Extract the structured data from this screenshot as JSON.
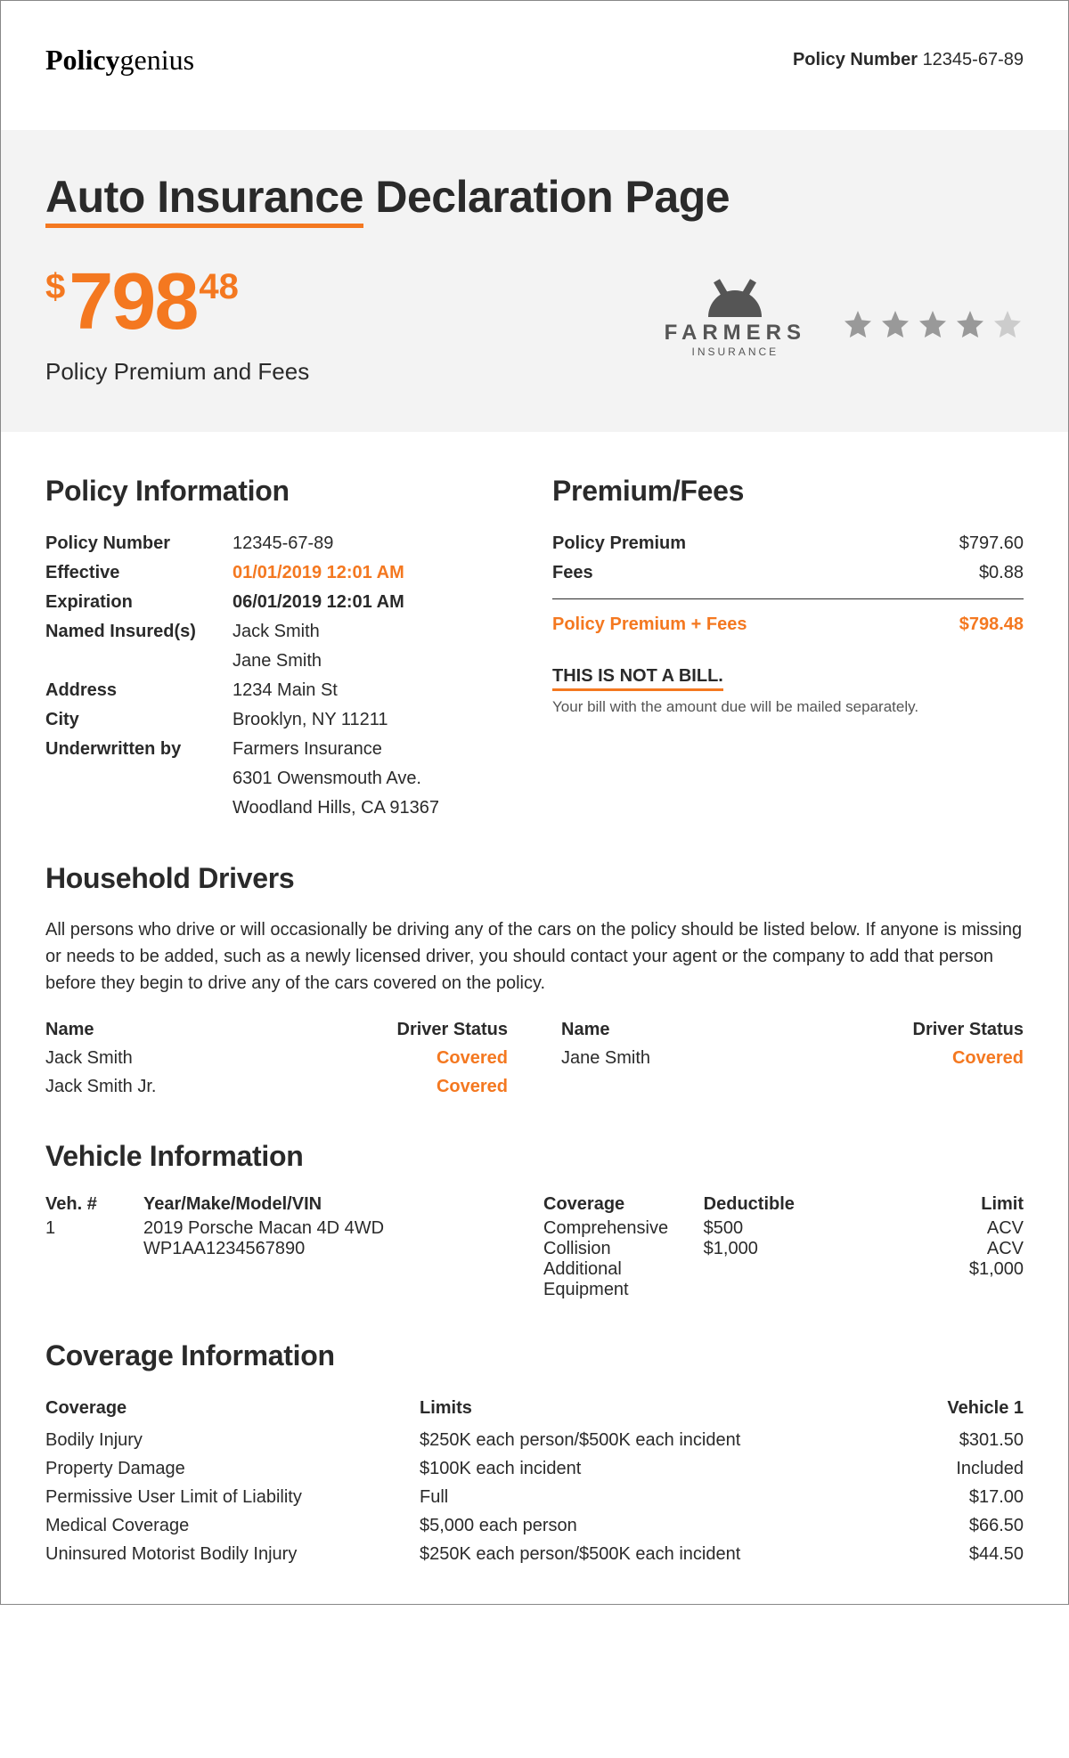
{
  "brand": {
    "bold": "Policy",
    "rest": "genius"
  },
  "header": {
    "label": "Policy Number",
    "value": "12345-67-89"
  },
  "hero": {
    "title_underlined": "Auto Insurance",
    "title_rest": " Declaration Page",
    "price_dollar": "$",
    "price_big": "798",
    "price_cents": "48",
    "caption": "Policy Premium and Fees",
    "insurer_name": "FARMERS",
    "insurer_sub": "INSURANCE",
    "rating_filled": 4,
    "rating_total": 5
  },
  "policy_info": {
    "heading": "Policy Information",
    "rows": [
      {
        "k": "Policy Number",
        "v": "12345-67-89"
      },
      {
        "k": "Effective",
        "v": "01/01/2019 12:01 AM",
        "orange": true,
        "bold": true
      },
      {
        "k": "Expiration",
        "v": "06/01/2019 12:01 AM",
        "bold": true
      },
      {
        "k": "Named Insured(s)",
        "v": "Jack Smith"
      },
      {
        "k": "",
        "v": "Jane Smith"
      },
      {
        "k": "Address",
        "v": "1234 Main St"
      },
      {
        "k": "City",
        "v": "Brooklyn, NY 11211"
      },
      {
        "k": "Underwritten by",
        "v": "Farmers Insurance"
      },
      {
        "k": "",
        "v": "6301 Owensmouth Ave."
      },
      {
        "k": "",
        "v": "Woodland Hills, CA 91367"
      }
    ]
  },
  "fees": {
    "heading": "Premium/Fees",
    "rows": [
      {
        "k": "Policy Premium",
        "v": "$797.60"
      },
      {
        "k": "Fees",
        "v": "$0.88"
      }
    ],
    "total": {
      "k": "Policy Premium + Fees",
      "v": "$798.48"
    },
    "not_bill": "THIS IS NOT A BILL.",
    "note": "Your bill with the amount due will be mailed separately."
  },
  "drivers": {
    "heading": "Household Drivers",
    "desc": "All persons who drive or will occasionally be driving any of the cars on the policy should be listed below. If anyone is missing or needs to be added, such as a newly licensed driver, you should contact your agent or the company to add that person before they begin to drive any of the cars covered on the policy.",
    "col_name": "Name",
    "col_status": "Driver Status",
    "left": [
      {
        "name": "Jack Smith",
        "status": "Covered"
      },
      {
        "name": "Jack Smith Jr.",
        "status": "Covered"
      }
    ],
    "right": [
      {
        "name": "Jane Smith",
        "status": "Covered"
      }
    ]
  },
  "vehicle": {
    "heading": "Vehicle Information",
    "h_num": "Veh. #",
    "h_ymmv": "Year/Make/Model/VIN",
    "num": "1",
    "line1": "2019 Porsche Macan 4D 4WD",
    "line2": "WP1AA1234567890",
    "h_cov": "Coverage",
    "h_ded": "Deductible",
    "h_lim": "Limit",
    "rows": [
      {
        "c": "Comprehensive",
        "d": "$500",
        "l": "ACV"
      },
      {
        "c": "Collision",
        "d": "$1,000",
        "l": "ACV"
      },
      {
        "c": "Additional Equipment",
        "d": "",
        "l": "$1,000"
      }
    ]
  },
  "coverage": {
    "heading": "Coverage Information",
    "h1": "Coverage",
    "h2": "Limits",
    "h3": "Vehicle 1",
    "rows": [
      {
        "c": "Bodily Injury",
        "l": "$250K each person/$500K each incident",
        "v": "$301.50"
      },
      {
        "c": "Property Damage",
        "l": "$100K each incident",
        "v": "Included"
      },
      {
        "c": "Permissive User Limit of Liability",
        "l": "Full",
        "v": "$17.00"
      },
      {
        "c": "Medical Coverage",
        "l": "$5,000 each person",
        "v": "$66.50"
      },
      {
        "c": "Uninsured Motorist Bodily Injury",
        "l": "$250K each person/$500K each incident",
        "v": "$44.50"
      }
    ]
  },
  "colors": {
    "accent": "#f47820",
    "text": "#2a2a2a",
    "hero_bg": "#f3f3f3",
    "star_filled": "#999999",
    "star_empty": "#cccccc"
  }
}
